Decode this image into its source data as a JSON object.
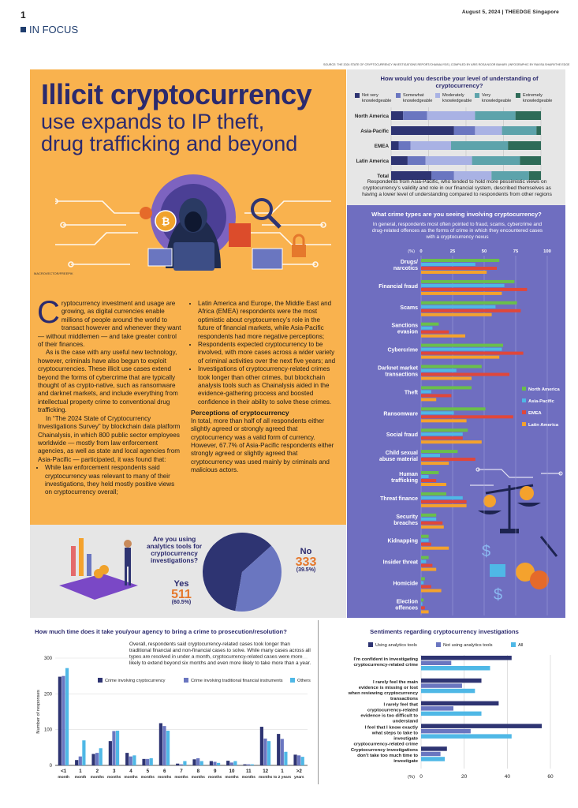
{
  "header": {
    "page_number": "1",
    "date_line": "August 5, 2024 | THEEDGE Singapore",
    "section": "IN FOCUS"
  },
  "source_line": "SOURCE: THE 2024 STATE OF CRYPTOCURRENCY INVESTIGATIONS REPORT/CHAINALYSIS | COMPILED BY ARIS ROSA NOOR BAHARI | INFOGRAPHIC BY RAVISA SHAIRI/THE EDGE",
  "headline": {
    "line1": "Illicit cryptocurrency",
    "line2": "use expands to IP theft,",
    "line3": "drug trafficking and beyond"
  },
  "photo_credit": "MACROVECTOR/FREEPIK",
  "article": {
    "dropcap": "C",
    "p1": "ryptocurrency investment and usage are growing, as digital currencies enable millions of people around the world to transact however and whenever they want — without middlemen — and take greater control of their finances.",
    "p2": "As is the case with any useful new technology, however, criminals have also begun to exploit cryptocurrencies. These illicit use cases extend beyond the forms of cybercrime that are typically thought of as crypto-native, such as ransomware and darknet markets, and include everything from intellectual property crime to conventional drug trafficking.",
    "p3": "In “The 2024 State of Cryptocurrency Investigations Survey” by blockchain data platform Chainalysis, in which 800 public sector employees worldwide — mostly from law enforcement agencies, as well as state and local agencies from Asia-Pacific — participated, it was found that:",
    "bullet1": "While law enforcement respondents said cryptocurrency was relevant to many of their investigations, they held mostly positive views on cryptocurrency overall;",
    "bullet2": "Latin America and Europe, the Middle East and Africa (EMEA) respondents were the most optimistic about cryptocurrency’s role in the future of financial markets, while Asia-Pacific respondents had more negative perceptions;",
    "bullet3": "Respondents expected cryptocurrency to be involved, with more cases across a wider variety of criminal activities over the next five years; and",
    "bullet4": "Investigations of cryptocurrency-related crimes took longer than other crimes, but blockchain analysis tools such as Chainalysis aided in the evidence-gathering process and boosted confidence in their ability to solve these crimes.",
    "subhead": "Perceptions of cryptocurrency",
    "p4": "In total, more than half of all respondents either slightly agreed or strongly agreed that cryptocurrency was a valid form of currency. However, 67.7% of Asia-Pacific respondents either strongly agreed or slightly agreed that cryptocurrency was used mainly by criminals and malicious actors."
  },
  "colors": {
    "dark_navy": "#2e3472",
    "mid_blue": "#6a76c0",
    "light_blue": "#a9b2e4",
    "teal": "#5da3ab",
    "dark_green": "#2e6b58",
    "na_green": "#6abf4b",
    "ap_blue": "#4fb8e6",
    "emea_red": "#e0473a",
    "latam_orange": "#f4a22d",
    "lead_orange": "#f9b24e",
    "purple_panel": "#6f6ec0"
  },
  "chart_data": [
    {
      "type": "bar",
      "orientation": "horizontal-stacked",
      "title": "How would you describe your level of understanding of cryptocurrency?",
      "categories": [
        "North America",
        "Asia-Pacific",
        "EMEA",
        "Latin America",
        "Total"
      ],
      "series": [
        {
          "name": "Not very knowledgeable",
          "values": [
            8,
            42,
            5,
            11,
            27
          ]
        },
        {
          "name": "Somewhat knowledgeable",
          "values": [
            16,
            14,
            8,
            12,
            15
          ]
        },
        {
          "name": "Moderately knowledgeable",
          "values": [
            32,
            18,
            27,
            31,
            25
          ]
        },
        {
          "name": "Very knowledgeable",
          "values": [
            27,
            23,
            38,
            32,
            25
          ]
        },
        {
          "name": "Extremely knowledgeable",
          "values": [
            17,
            3,
            22,
            14,
            8
          ]
        }
      ],
      "xlabel": "(%)",
      "xlim": [
        0,
        100
      ],
      "xticks": [
        0,
        25,
        50,
        75,
        100
      ],
      "note": "Respondents from Asia-Pacific, who tended to hold more pessimistic views on cryptocurrency’s validity and role in our financial system, described themselves as having a lower level of understanding compared to respondents from other regions"
    },
    {
      "type": "bar",
      "orientation": "horizontal-grouped",
      "title": "What crime types are you seeing involving cryptocurrency?",
      "subtitle": "In general, respondents most often pointed to fraud, scams, cybercrime and drug-related offences as the forms of crime in which they encountered cases with a cryptocurrency nexus",
      "categories": [
        "Drugs/ narcotics",
        "Financial fraud",
        "Scams",
        "Sanctions evasion",
        "Cybercrime",
        "Darknet market transactions",
        "Theft",
        "Ransomware",
        "Social fraud",
        "Child sexual abuse material",
        "Human trafficking",
        "Threat finance",
        "Security breaches",
        "Kidnapping",
        "Insider threat",
        "Homicide",
        "Election offences"
      ],
      "series": [
        {
          "name": "North America",
          "values": [
            62,
            74,
            76,
            14,
            65,
            48,
            40,
            51,
            37,
            29,
            14,
            20,
            12,
            6,
            6,
            3,
            2
          ]
        },
        {
          "name": "Asia-Pacific",
          "values": [
            43,
            66,
            59,
            9,
            64,
            28,
            8,
            26,
            33,
            15,
            6,
            33,
            12,
            6,
            4,
            2,
            1
          ]
        },
        {
          "name": "EMEA",
          "values": [
            60,
            84,
            79,
            22,
            81,
            70,
            24,
            73,
            33,
            43,
            12,
            36,
            17,
            8,
            9,
            8,
            3
          ]
        },
        {
          "name": "Latin America",
          "values": [
            52,
            64,
            56,
            35,
            62,
            40,
            12,
            36,
            48,
            22,
            20,
            36,
            18,
            22,
            12,
            16,
            6
          ]
        }
      ],
      "xlabel": "(%)",
      "xlim": [
        0,
        100
      ],
      "xticks": [
        0,
        25,
        50,
        75,
        100
      ],
      "legend_position": "right",
      "grid": true
    },
    {
      "type": "pie",
      "title": "Are you using analytics tools for cryptocurrency investigations?",
      "slices": [
        {
          "label": "Yes",
          "value": 511,
          "percent_label": "(60.5%)"
        },
        {
          "label": "No",
          "value": 333,
          "percent_label": "(39.5%)"
        }
      ]
    },
    {
      "type": "bar",
      "title": "How much time does it take you/your agency to bring a crime to prosecution/resolution?",
      "subtitle": "Overall, respondents said cryptocurrency-related cases took longer than traditional financial and non-financial cases to solve. While many cases across all types are resolved in under a month, cryptocurrency-related cases were more likely to extend beyond six months and even more likely to take more than a year.",
      "categories": [
        "<1 month",
        "1 month",
        "2 months",
        "3 months",
        "4 months",
        "5 months",
        "6 months",
        "7 months",
        "8 months",
        "9 months",
        "10 months",
        "11 months",
        "12 months",
        "1 to 2 years",
        ">2 years"
      ],
      "series": [
        {
          "name": "Crime involving cryptocurrency",
          "values": [
            248,
            15,
            32,
            68,
            35,
            18,
            118,
            5,
            17,
            12,
            13,
            3,
            108,
            88,
            30
          ]
        },
        {
          "name": "Crime involving traditional financial instruments",
          "values": [
            250,
            25,
            35,
            96,
            25,
            18,
            110,
            3,
            20,
            10,
            8,
            3,
            75,
            74,
            28
          ]
        },
        {
          "name": "Others",
          "values": [
            272,
            70,
            48,
            97,
            28,
            20,
            97,
            12,
            12,
            7,
            12,
            3,
            68,
            38,
            24
          ]
        }
      ],
      "ylabel": "Number of responses",
      "ylim": [
        0,
        300
      ],
      "yticks": [
        0,
        100,
        200,
        300
      ],
      "legend_position": "top"
    },
    {
      "type": "bar",
      "orientation": "horizontal-grouped",
      "title": "Sentiments regarding cryptocurrency investigations",
      "categories": [
        "I’m confident in investigating cryptocurrency-related crime",
        "I rarely feel the main evidence is missing or lost when reviewing cryptocurrency transactions",
        "I rarely feel that cryptocurrency-related evidence is too difficult to understand",
        "I feel that I know exactly what steps to take to investigate cryptocurrency-related crime",
        "Cryptocurrency investigations don’t take too much time to investigate"
      ],
      "series": [
        {
          "name": "Using analytics tools",
          "values": [
            42,
            28,
            36,
            56,
            12
          ]
        },
        {
          "name": "Not using analytics tools",
          "values": [
            14,
            19,
            15,
            23,
            9
          ]
        },
        {
          "name": "All",
          "values": [
            32,
            25,
            28,
            42,
            11
          ]
        }
      ],
      "xlabel": "(%)",
      "xlim": [
        0,
        60
      ],
      "xticks": [
        0,
        20,
        40,
        60
      ],
      "legend_position": "top"
    }
  ]
}
